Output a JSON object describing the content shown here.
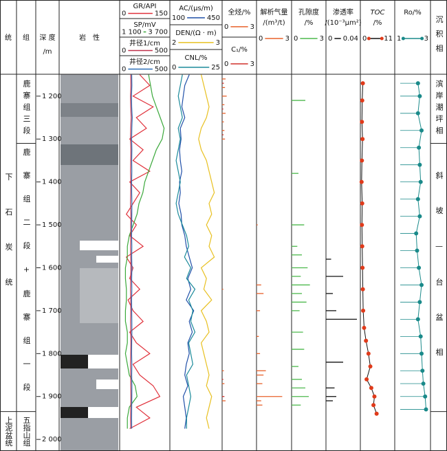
{
  "chart_data": {
    "type": "well-log",
    "columns": {
      "system": "统",
      "formation": "组",
      "lithology": "岩　性",
      "facies": "沉积相"
    },
    "depth_axis": {
      "title": "深 度",
      "unit": "/m",
      "ylim": [
        1149,
        2027
      ],
      "ticks": [
        {
          "value": 1200,
          "label": "1 200"
        },
        {
          "value": 1300,
          "label": "1 300"
        },
        {
          "value": 1400,
          "label": "1 400"
        },
        {
          "value": 1500,
          "label": "1 500"
        },
        {
          "value": 1600,
          "label": "1 600"
        },
        {
          "value": 1700,
          "label": "1 700"
        },
        {
          "value": 1800,
          "label": "1 800"
        },
        {
          "value": 1900,
          "label": "1 900"
        },
        {
          "value": 2000,
          "label": "2 000"
        }
      ]
    },
    "system_units": [
      {
        "name": "下石炭统",
        "top": 1149,
        "bottom": 1935
      },
      {
        "name": "上泥盆统",
        "top": 1935,
        "bottom": 2027
      }
    ],
    "formation_units": [
      {
        "name": "鹿寨组三段",
        "top": 1149,
        "bottom": 1310
      },
      {
        "name": "鹿寨组二段+鹿寨组一段",
        "top": 1310,
        "bottom": 1935
      },
      {
        "name": "五指山组",
        "top": 1935,
        "bottom": 2027
      }
    ],
    "facies_units": [
      {
        "name": "滨岸潮坪相",
        "top": 1149,
        "bottom": 1310
      },
      {
        "name": "斜坡—台盆相",
        "top": 1310,
        "bottom": 1935
      }
    ],
    "sample_depths": [
      1150,
      1175,
      1200,
      1225,
      1250,
      1275,
      1300,
      1325,
      1350,
      1375,
      1400,
      1425,
      1450,
      1475,
      1500,
      1525,
      1550,
      1575,
      1600,
      1625,
      1650,
      1675,
      1700,
      1725,
      1750,
      1775,
      1800,
      1825,
      1850,
      1875,
      1900,
      1925,
      1950,
      1975
    ],
    "tracks": [
      {
        "curves": [
          {
            "name": "GR/API",
            "style": "line",
            "color": "#e0303a",
            "xlim": [
              0,
              150
            ],
            "xticks": [
              0,
              150
            ],
            "values": [
              60,
              90,
              40,
              100,
              50,
              80,
              30,
              70,
              40,
              90,
              30,
              60,
              40,
              20,
              50,
              30,
              70,
              20,
              40,
              30,
              60,
              25,
              40,
              70,
              30,
              50,
              90,
              40,
              60,
              100,
              120,
              50,
              90,
              30
            ]
          },
          {
            "name": "SP/mV",
            "style": "line",
            "color": "#3aa83a",
            "xlim": [
              1100,
              3700
            ],
            "xticks": [
              {
                "value": 1100,
                "label": "1 100"
              },
              {
                "value": 3700,
                "label": "3 700"
              }
            ],
            "values": [
              2600,
              2700,
              2800,
              3000,
              3200,
              3400,
              3300,
              3000,
              2800,
              2600,
              2400,
              2300,
              2100,
              2000,
              1800,
              1600,
              1500,
              1500,
              1400,
              1400,
              1450,
              1450,
              1400,
              1400,
              1500,
              1500,
              1400,
              1500,
              1600,
              1900,
              2000,
              1600,
              1500,
              1500
            ]
          },
          {
            "name": "井径1/cm",
            "style": "line",
            "color": "#c0304a",
            "xlim": [
              0,
              500
            ],
            "xticks": [
              0,
              500
            ],
            "values": [
              110,
              112,
              108,
              110,
              115,
              110,
              108,
              112,
              110,
              109,
              111,
              110,
              108,
              112,
              110,
              111,
              109,
              110,
              112,
              110,
              108,
              110,
              111,
              109,
              110,
              112,
              110,
              108,
              110,
              111,
              112,
              110,
              109,
              110
            ]
          },
          {
            "name": "井径2/cm",
            "style": "line",
            "color": "#2a6fb8",
            "xlim": [
              0,
              500
            ],
            "xticks": [
              0,
              500
            ],
            "values": [
              120,
              122,
              118,
              120,
              125,
              121,
              119,
              122,
              120,
              121,
              119,
              120,
              122,
              121,
              120,
              119,
              121,
              120,
              122,
              120,
              121,
              119,
              120,
              121,
              122,
              120,
              119,
              121,
              120,
              122,
              121,
              120,
              119,
              120
            ]
          }
        ]
      },
      {
        "curves": [
          {
            "name": "AC/(μs/m)",
            "style": "line",
            "color": "#1f4fa8",
            "xlim": [
              100,
              450
            ],
            "xticks": [
              100,
              450
            ],
            "values": [
              230,
              200,
              190,
              180,
              200,
              170,
              175,
              165,
              170,
              180,
              165,
              170,
              160,
              175,
              180,
              200,
              210,
              230,
              250,
              220,
              240,
              210,
              260,
              230,
              250,
              220,
              230,
              210,
              200,
              220,
              190,
              200,
              210,
              200
            ]
          },
          {
            "name": "DEN/(Ω · m)",
            "style": "line",
            "color": "#e8c020",
            "xlim": [
              2,
              3
            ],
            "xticks": [
              2,
              3
            ],
            "values": [
              2.6,
              2.65,
              2.7,
              2.75,
              2.7,
              2.6,
              2.55,
              2.6,
              2.7,
              2.75,
              2.8,
              2.85,
              2.75,
              2.8,
              2.7,
              2.8,
              2.75,
              2.85,
              2.6,
              2.7,
              2.65,
              2.8,
              2.6,
              2.7,
              2.75,
              2.6,
              2.65,
              2.7,
              2.75,
              2.7,
              2.8,
              2.75,
              2.7,
              2.75
            ]
          },
          {
            "name": "CNL/%",
            "style": "line",
            "color": "#1a8a9a",
            "xlim": [
              0,
              25
            ],
            "xticks": [
              0,
              25
            ],
            "values": [
              6,
              5,
              4,
              5,
              6,
              4,
              5,
              4,
              3,
              4,
              5,
              4,
              3,
              4,
              6,
              8,
              9,
              7,
              10,
              8,
              12,
              9,
              11,
              10,
              12,
              9,
              10,
              11,
              8,
              9,
              10,
              9,
              8,
              8
            ]
          }
        ]
      },
      {
        "curves": [
          {
            "name": "全烃/%",
            "style": "bars",
            "color": "#e8602a",
            "xlim": [
              0,
              3
            ],
            "xticks": [
              0,
              3
            ],
            "depths": [
              1160,
              1180,
              1200,
              1220,
              1240,
              1260,
              1280,
              1300,
              1650,
              1840,
              1870,
              1910
            ],
            "values": [
              0.3,
              0.25,
              0.4,
              0.2,
              0.3,
              0.15,
              0.2,
              0.25,
              0.1,
              0.15,
              0.2,
              0.3
            ]
          },
          {
            "name": "C₁/%",
            "style": "bars",
            "color": "#d0302a",
            "xlim": [
              0,
              3
            ],
            "xticks": [
              0,
              3
            ],
            "depths": [
              1170,
              1230,
              1290,
              1860,
              1900
            ],
            "values": [
              0.15,
              0.1,
              0.12,
              0.1,
              0.2
            ]
          }
        ]
      },
      {
        "title": [
          "解析气量",
          "/(m³/t)"
        ],
        "curves": [
          {
            "style": "bars",
            "color": "#e8602a",
            "xlim": [
              0,
              3
            ],
            "xticks": [
              0,
              3
            ],
            "depths": [
              1500,
              1640,
              1660,
              1700,
              1760,
              1800,
              1840,
              1850,
              1870,
              1900,
              1910,
              1920
            ],
            "values": [
              0.1,
              0.4,
              0.6,
              0.3,
              0.2,
              0.3,
              0.8,
              0.6,
              0.5,
              2.2,
              0.4,
              0.5
            ]
          }
        ]
      },
      {
        "title": [
          "孔隙度",
          "/%"
        ],
        "curves": [
          {
            "style": "bars",
            "color": "#4cb84c",
            "xlim": [
              0,
              3
            ],
            "xticks": [
              0,
              3
            ],
            "depths": [
              1210,
              1380,
              1500,
              1550,
              1570,
              1600,
              1620,
              1640,
              1660,
              1680,
              1700,
              1750,
              1790,
              1830,
              1860,
              1880,
              1900,
              1920
            ],
            "values": [
              1.2,
              0.6,
              1.1,
              0.5,
              0.9,
              1.4,
              0.8,
              1.6,
              0.9,
              1.3,
              0.7,
              1.0,
              1.1,
              0.6,
              0.9,
              1.2,
              1.5,
              0.8
            ]
          }
        ]
      },
      {
        "title": [
          "渗透率",
          "/(10⁻³μm²)"
        ],
        "curves": [
          {
            "style": "bars",
            "color": "#111111",
            "xlim": [
              0,
              0.04
            ],
            "xticks": [
              0,
              0.04
            ],
            "depths": [
              1580,
              1620,
              1660,
              1700,
              1720,
              1820,
              1880,
              1900,
              1910
            ],
            "values": [
              0.006,
              0.02,
              0.008,
              0.012,
              0.036,
              0.02,
              0.01,
              0.012,
              0.008
            ]
          }
        ]
      },
      {
        "title": [
          "TOC",
          "/%"
        ],
        "curves": [
          {
            "style": "dots",
            "color": "#e03a1a",
            "line": "#111111",
            "xlim": [
              0,
              11
            ],
            "xticks": [
              0,
              11
            ],
            "depths": [
              1170,
              1210,
              1260,
              1300,
              1350,
              1400,
              1450,
              1500,
              1550,
              1600,
              1650,
              1700,
              1740,
              1770,
              1800,
              1830,
              1860,
              1880,
              1900,
              1920,
              1940
            ],
            "values": [
              0.8,
              0.6,
              0.5,
              0.7,
              0.5,
              0.4,
              0.6,
              0.5,
              0.6,
              0.7,
              0.8,
              0.9,
              1.2,
              1.8,
              2.6,
              3.2,
              2.0,
              3.5,
              4.5,
              4.2,
              5.2
            ]
          }
        ]
      },
      {
        "title": [
          "Ro/%"
        ],
        "curves": [
          {
            "style": "dots",
            "color": "#1a8a8a",
            "line": "#1a8a8a",
            "xlim": [
              1,
              3
            ],
            "xticks": [
              1,
              3
            ],
            "depths": [
              1170,
              1200,
              1240,
              1280,
              1320,
              1360,
              1400,
              1440,
              1480,
              1520,
              1560,
              1600,
              1640,
              1680,
              1720,
              1760,
              1800,
              1840,
              1870,
              1900,
              1930
            ],
            "values": [
              2.3,
              2.4,
              2.3,
              2.5,
              2.35,
              2.4,
              2.45,
              2.3,
              2.4,
              2.2,
              2.25,
              2.35,
              2.5,
              2.4,
              2.3,
              2.45,
              2.5,
              2.55,
              2.6,
              2.7,
              2.75
            ]
          }
        ]
      }
    ]
  }
}
